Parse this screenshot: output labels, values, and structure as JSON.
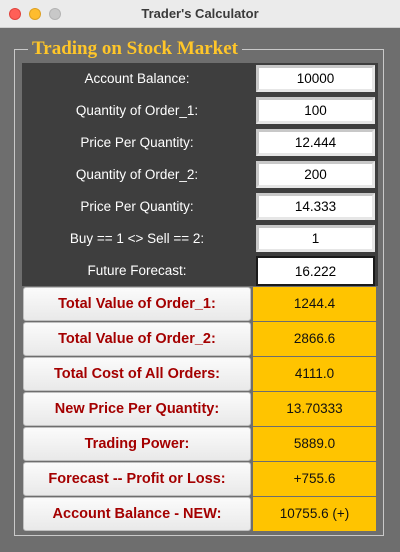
{
  "window": {
    "title": "Trader's Calculator"
  },
  "frame": {
    "title": "Trading on Stock Market"
  },
  "inputs": [
    {
      "label": "Account Balance:",
      "value": "10000"
    },
    {
      "label": "Quantity of Order_1:",
      "value": "100"
    },
    {
      "label": "Price Per Quantity:",
      "value": "12.444"
    },
    {
      "label": "Quantity of Order_2:",
      "value": "200"
    },
    {
      "label": "Price Per Quantity:",
      "value": "14.333"
    },
    {
      "label": "Buy == 1 <> Sell == 2:",
      "value": "1"
    },
    {
      "label": "Future Forecast:",
      "value": "16.222"
    }
  ],
  "outputs": [
    {
      "label": "Total Value of Order_1:",
      "value": "1244.4"
    },
    {
      "label": "Total Value of Order_2:",
      "value": "2866.6"
    },
    {
      "label": "Total Cost of All Orders:",
      "value": "4111.0"
    },
    {
      "label": "New Price Per Quantity:",
      "value": "13.70333"
    },
    {
      "label": "Trading Power:",
      "value": "5889.0"
    },
    {
      "label": "Forecast -- Profit or Loss:",
      "value": "+755.6"
    },
    {
      "label": "Account Balance - NEW:",
      "value": "10755.6 (+)"
    }
  ],
  "colors": {
    "accent_title": "#ffc629",
    "output_value_bg": "#ffc400",
    "output_label": "#a40000",
    "input_panel_bg": "#3e3e3e"
  }
}
